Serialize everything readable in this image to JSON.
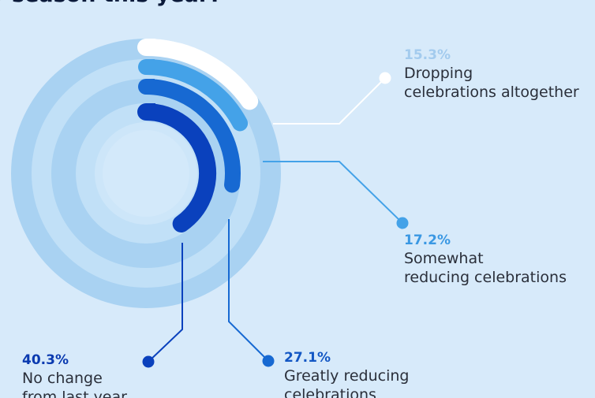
{
  "title": "y season this year?",
  "colors": {
    "background": "#d7eafa",
    "ring_track": "#a9d2f2",
    "ring_track_light": "#c1e0f7",
    "inner_circle": "#cde6f9"
  },
  "chart_data": {
    "type": "radial-bar",
    "title": "y season this year?",
    "unit": "%",
    "max_value": 100,
    "series": [
      {
        "value": 15.3,
        "pct_label": "15.3%",
        "label_lines": [
          "Dropping",
          "celebrations altogether"
        ],
        "color": "#ffffff",
        "pct_color": "#a3cbee"
      },
      {
        "value": 17.2,
        "pct_label": "17.2%",
        "label_lines": [
          "Somewhat",
          "reducing celebrations"
        ],
        "color": "#44a2e8",
        "pct_color": "#3a98e3"
      },
      {
        "value": 27.1,
        "pct_label": "27.1%",
        "label_lines": [
          "Greatly reducing",
          "celebrations"
        ],
        "color": "#1769d2",
        "pct_color": "#1357c4"
      },
      {
        "value": 40.3,
        "pct_label": "40.3%",
        "label_lines": [
          "No change",
          "from last year"
        ],
        "color": "#0a41bd",
        "pct_color": "#0a3ab0"
      }
    ]
  }
}
